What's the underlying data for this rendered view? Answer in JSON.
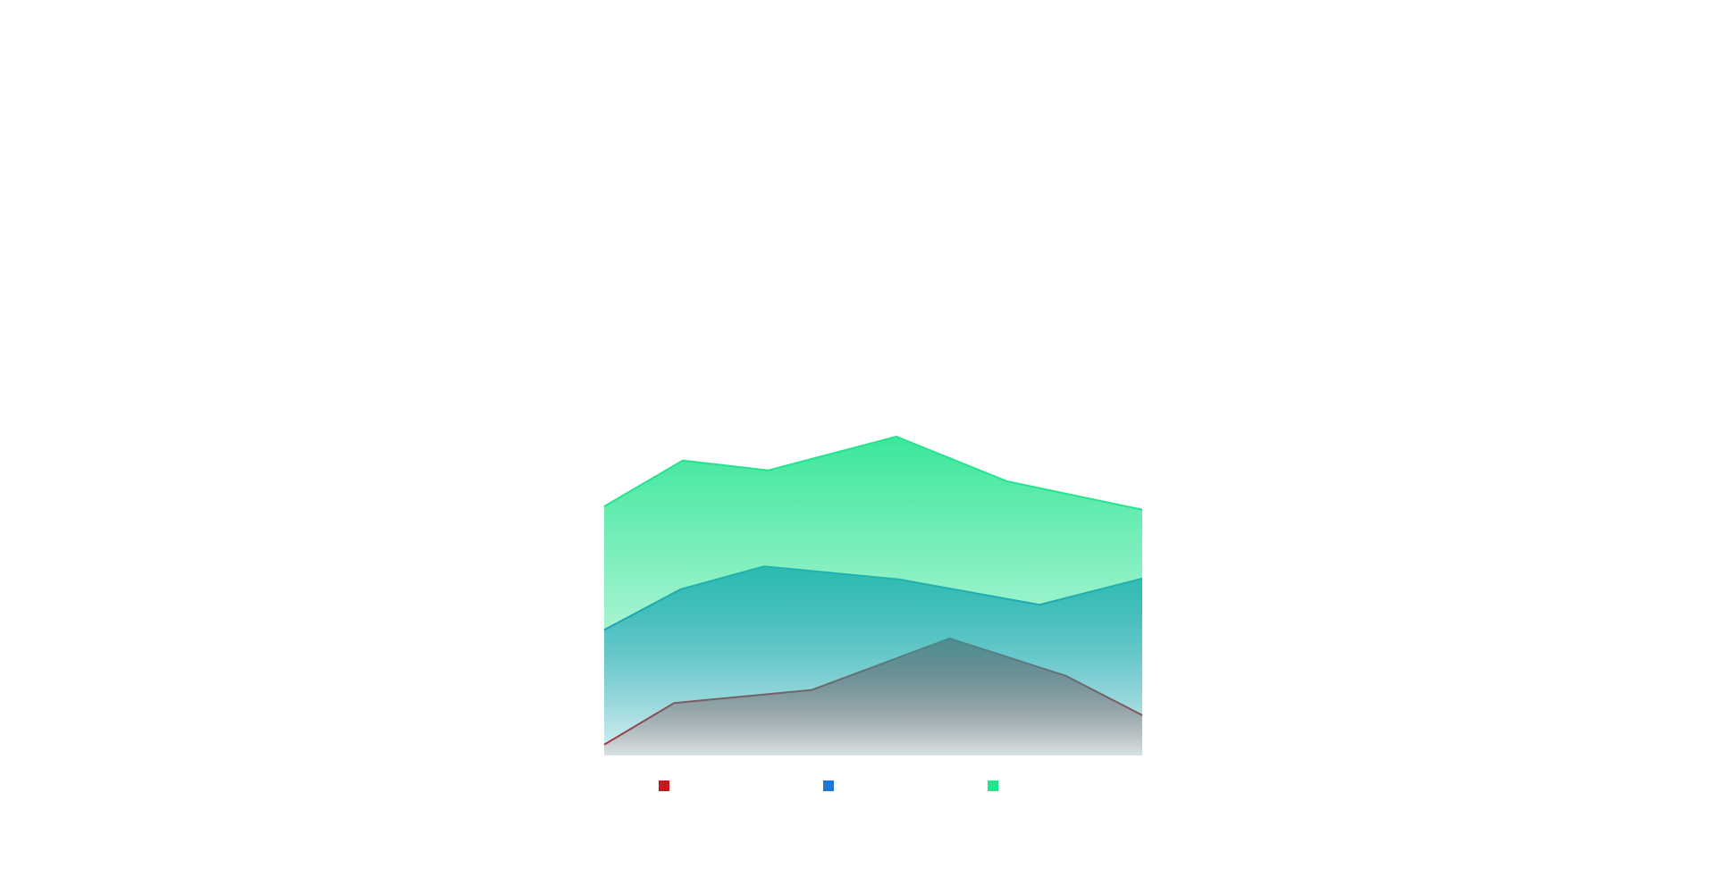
{
  "chart_data": {
    "type": "area",
    "legend": "bottom",
    "xlim": [
      0,
      100
    ],
    "ylim": [
      0,
      100
    ],
    "series": [
      {
        "color": "#c8181c",
        "x": [
          0,
          13,
          38.6,
          64.2,
          85.8,
          100
        ],
        "values": [
          3.3,
          16,
          20,
          35.7,
          24.3,
          12.3
        ]
      },
      {
        "color": "#1c78d4",
        "x": [
          0,
          14.2,
          29.7,
          54.9,
          80.9,
          100
        ],
        "values": [
          38.3,
          50.7,
          57.7,
          53.7,
          46,
          54
        ]
      },
      {
        "color": "#25e48f",
        "x": [
          0,
          14.6,
          30.5,
          54.3,
          74.8,
          100
        ],
        "values": [
          76,
          90,
          87,
          97.3,
          83.7,
          75
        ]
      }
    ]
  }
}
